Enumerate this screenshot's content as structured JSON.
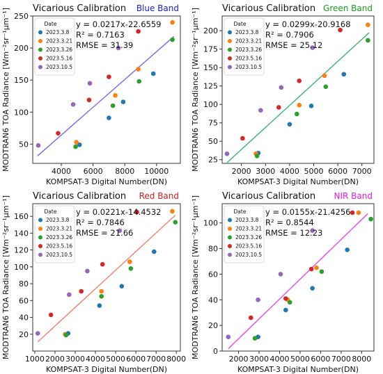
{
  "figure": {
    "shared_ylabel": "MODTRAN6 TOA Radiance"
  },
  "chart_data": [
    {
      "type": "scatter",
      "title": "Vicarious Calibration",
      "band_label": "Blue Band",
      "band_color": "#1a1adb",
      "line_color": "#7b68ee",
      "xlabel": "KOMPSAT-3 Digital Number(DN)",
      "ylabel": "MODTRAN6 TOA Radiance [Wm⁻²sr⁻¹μm⁻¹]",
      "xlim": [
        2200,
        11500
      ],
      "ylim": [
        20,
        250
      ],
      "xticks": [
        4000,
        6000,
        8000,
        10000
      ],
      "yticks": [
        50,
        100,
        150,
        200,
        250
      ],
      "fit": {
        "slope": 0.0217,
        "intercept": -22.6559,
        "x_range": [
          2500,
          11100
        ]
      },
      "annotations": [
        "y = 0.0217x-22.6559",
        "R² = 0.7163",
        "RMSE = 31.39"
      ],
      "legend_title": "Date",
      "legend_position": "top-left",
      "series": [
        {
          "name": "2023.3.8",
          "color": "#1f77b4",
          "points": [
            [
              5150,
              49
            ],
            [
              7000,
              91
            ],
            [
              7900,
              116
            ],
            [
              9800,
              160
            ]
          ]
        },
        {
          "name": "2023.3.21",
          "color": "#ff7f0e",
          "points": [
            [
              4950,
              53
            ],
            [
              7400,
              126
            ],
            [
              8850,
              167
            ],
            [
              11000,
              240
            ]
          ]
        },
        {
          "name": "2023.3.26",
          "color": "#2ca02c",
          "points": [
            [
              4900,
              46
            ],
            [
              7250,
              110
            ],
            [
              8900,
              148
            ],
            [
              11000,
              213
            ]
          ]
        },
        {
          "name": "2023.5.16",
          "color": "#d62728",
          "points": [
            [
              3800,
              67
            ],
            [
              5750,
              119
            ],
            [
              7000,
              155
            ],
            [
              8850,
              226
            ]
          ]
        },
        {
          "name": "2023.10.5",
          "color": "#9467bd",
          "points": [
            [
              2550,
              48
            ],
            [
              4750,
              112
            ],
            [
              5800,
              145
            ],
            [
              7600,
              200
            ]
          ]
        }
      ]
    },
    {
      "type": "scatter",
      "title": "Vicarious Calibration",
      "band_label": "Green Band",
      "band_color": "#1a9e1a",
      "line_color": "#3cb371",
      "xlabel": "KOMPSAT-3 Digital Number(DN)",
      "ylabel": "MODTRAN6 TOA Radiance [Wm⁻²sr⁻¹μm⁻¹]",
      "xlim": [
        1200,
        7500
      ],
      "ylim": [
        20,
        220
      ],
      "xticks": [
        2000,
        3000,
        4000,
        5000,
        6000,
        7000
      ],
      "yticks": [
        25,
        50,
        75,
        100,
        125,
        150,
        175,
        200
      ],
      "fit": {
        "slope": 0.0299,
        "intercept": -20.9168,
        "x_range": [
          1400,
          7300
        ]
      },
      "annotations": [
        "y = 0.0299x-20.9168",
        "R² = 0.7906",
        "RMSE = 25.12"
      ],
      "legend_title": "Date",
      "legend_position": "top-left",
      "series": [
        {
          "name": "2023.3.8",
          "color": "#1f77b4",
          "points": [
            [
              2700,
              34
            ],
            [
              4000,
              73
            ],
            [
              4900,
              98
            ],
            [
              6250,
              141
            ]
          ]
        },
        {
          "name": "2023.3.21",
          "color": "#ff7f0e",
          "points": [
            [
              2600,
              33
            ],
            [
              4400,
              99
            ],
            [
              5450,
              139
            ],
            [
              7250,
              208
            ]
          ]
        },
        {
          "name": "2023.3.26",
          "color": "#2ca02c",
          "points": [
            [
              2650,
              30
            ],
            [
              4300,
              87
            ],
            [
              5500,
              124
            ],
            [
              7250,
              187
            ]
          ]
        },
        {
          "name": "2023.5.16",
          "color": "#d62728",
          "points": [
            [
              2050,
              54
            ],
            [
              3550,
              96
            ],
            [
              4400,
              132
            ],
            [
              6100,
              201
            ]
          ]
        },
        {
          "name": "2023.10.5",
          "color": "#9467bd",
          "points": [
            [
              1400,
              33
            ],
            [
              2800,
              92
            ],
            [
              3650,
              123
            ],
            [
              4950,
              177
            ]
          ]
        }
      ]
    },
    {
      "type": "scatter",
      "title": "Vicarious Calibration",
      "band_label": "Red Band",
      "band_color": "#d61a1a",
      "line_color": "#f08070",
      "xlabel": "KOMPSAT-3 Digital Number(DN)",
      "ylabel": "MODTRAN6 TOA Radiance [Wm⁻²sr⁻¹μm⁻¹]",
      "xlim": [
        900,
        8200
      ],
      "ylim": [
        0,
        175
      ],
      "xticks": [
        1000,
        2000,
        3000,
        4000,
        5000,
        6000,
        7000,
        8000
      ],
      "yticks": [
        20,
        40,
        60,
        80,
        100,
        120,
        140,
        160
      ],
      "fit": {
        "slope": 0.0221,
        "intercept": -14.4532,
        "x_range": [
          1150,
          7950
        ]
      },
      "annotations": [
        "y = 0.0221x-14.4532",
        "R² = 0.7846",
        "RMSE = 21.66"
      ],
      "legend_title": "Date",
      "legend_position": "top-left",
      "series": [
        {
          "name": "2023.3.8",
          "color": "#1f77b4",
          "points": [
            [
              2650,
              21
            ],
            [
              4200,
              54
            ],
            [
              5300,
              77
            ],
            [
              6900,
              118
            ]
          ]
        },
        {
          "name": "2023.3.21",
          "color": "#ff7f0e",
          "points": [
            [
              2500,
              20
            ],
            [
              4300,
              71
            ],
            [
              5700,
              106
            ],
            [
              7800,
              166
            ]
          ]
        },
        {
          "name": "2023.3.26",
          "color": "#2ca02c",
          "points": [
            [
              2550,
              19
            ],
            [
              4300,
              65
            ],
            [
              5750,
              98
            ],
            [
              7950,
              153
            ]
          ]
        },
        {
          "name": "2023.5.16",
          "color": "#d62728",
          "points": [
            [
              1800,
              43
            ],
            [
              3300,
              71
            ],
            [
              4350,
              103
            ],
            [
              6050,
              165
            ]
          ]
        },
        {
          "name": "2023.10.5",
          "color": "#9467bd",
          "points": [
            [
              1150,
              21
            ],
            [
              2700,
              67
            ],
            [
              3600,
              95
            ],
            [
              5200,
              143
            ]
          ]
        }
      ]
    },
    {
      "type": "scatter",
      "title": "Vicarious Calibration",
      "band_label": "NIR Band",
      "band_color": "#e61ae6",
      "line_color": "#ee44ee",
      "xlabel": "KOMPSAT-3 Digital Number(DN)",
      "ylabel": "MODTRAN6 TOA Radiance [Wm⁻²sr⁻¹μm⁻¹]",
      "xlim": [
        1200,
        8600
      ],
      "ylim": [
        0,
        115
      ],
      "xticks": [
        2000,
        3000,
        4000,
        5000,
        6000,
        7000,
        8000
      ],
      "yticks": [
        0,
        20,
        40,
        60,
        80,
        100
      ],
      "fit": {
        "slope": 0.0155,
        "intercept": -21.4256,
        "x_range": [
          1500,
          8300
        ]
      },
      "annotations": [
        "y = 0.0155x-21.4256",
        "R² = 0.8544",
        "RMSE = 12.23"
      ],
      "legend_title": "Date",
      "legend_position": "top-left",
      "series": [
        {
          "name": "2023.3.8",
          "color": "#1f77b4",
          "points": [
            [
              2950,
              11
            ],
            [
              4300,
              32
            ],
            [
              5600,
              49
            ],
            [
              7300,
              79
            ]
          ]
        },
        {
          "name": "2023.3.21",
          "color": "#ff7f0e",
          "points": [
            [
              2800,
              10
            ],
            [
              4400,
              40
            ],
            [
              5800,
              65
            ],
            [
              7850,
              108
            ]
          ]
        },
        {
          "name": "2023.3.26",
          "color": "#2ca02c",
          "points": [
            [
              2800,
              10
            ],
            [
              4500,
              38
            ],
            [
              6050,
              62
            ],
            [
              8450,
              103
            ]
          ]
        },
        {
          "name": "2023.5.16",
          "color": "#d62728",
          "points": [
            [
              2600,
              26
            ],
            [
              4300,
              41
            ],
            [
              5550,
              64
            ],
            [
              7550,
              108
            ]
          ]
        },
        {
          "name": "2023.10.5",
          "color": "#9467bd",
          "points": [
            [
              1500,
              11
            ],
            [
              2950,
              40
            ],
            [
              4050,
              60
            ],
            [
              5600,
              94
            ]
          ]
        }
      ]
    }
  ]
}
